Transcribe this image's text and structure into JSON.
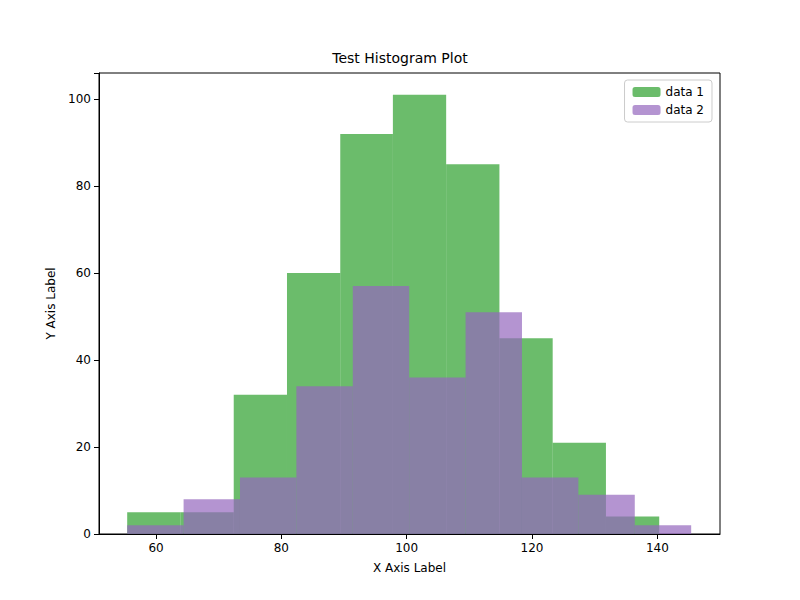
{
  "chart_data": {
    "type": "histogram",
    "title": "Test Histogram Plot",
    "x_label": "X Axis Label",
    "y_label": "Y Axis Label",
    "series": [
      {
        "name": "data 1",
        "color": "#2ca02c",
        "bins": [
          55.4,
          63.9,
          72.4,
          80.9,
          89.4,
          97.8,
          106.3,
          114.8,
          123.3,
          131.8,
          140.3
        ],
        "values": [
          5,
          5,
          32,
          60,
          92,
          101,
          85,
          45,
          21,
          4
        ]
      },
      {
        "name": "data 2",
        "color": "#9467bd",
        "bins": [
          55.4,
          64.4,
          73.4,
          82.4,
          91.4,
          100.4,
          109.4,
          118.4,
          127.4,
          136.4,
          145.4
        ],
        "values": [
          2,
          8,
          13,
          34,
          57,
          36,
          51,
          13,
          9,
          2
        ]
      }
    ],
    "xlim": [
      50.9,
      150
    ],
    "xticks": [
      60,
      80,
      100,
      120,
      140
    ],
    "ylim": [
      0,
      106
    ],
    "yticks": [
      0,
      20,
      40,
      60,
      80,
      100
    ],
    "legend": "upper right",
    "grid": false
  }
}
